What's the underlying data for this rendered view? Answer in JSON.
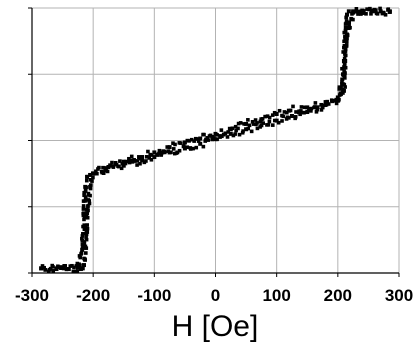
{
  "chart_data": {
    "type": "scatter",
    "title": "",
    "xlabel": "H [Oe]",
    "ylabel": "",
    "xlim": [
      -300,
      300
    ],
    "ylim": [
      0,
      4
    ],
    "xticks": [
      -300,
      -200,
      -100,
      0,
      100,
      200,
      300
    ],
    "xtick_labels": [
      "-300",
      "-200",
      "-100",
      "0",
      "100",
      "200",
      "300"
    ],
    "yticks": [
      0,
      1,
      2,
      3,
      4
    ],
    "grid": true,
    "legend": "none",
    "colors": {
      "marker": "#000000",
      "grid": "#b3b3b3",
      "axis": "#000000"
    },
    "series": [
      {
        "branch": "descending",
        "x": [
          285,
          270,
          255,
          240,
          225,
          215,
          212,
          210,
          208,
          205,
          200,
          180,
          150,
          120,
          100,
          75,
          50,
          25,
          0,
          -25,
          -50,
          -75,
          -100,
          -125,
          -150,
          -175,
          -200,
          -205,
          -210,
          -213,
          -215,
          -217,
          -220,
          -240,
          -260,
          -285
        ],
        "y": [
          3.95,
          3.95,
          3.96,
          3.95,
          3.93,
          3.6,
          3.2,
          2.75,
          2.72,
          2.7,
          2.65,
          2.58,
          2.5,
          2.45,
          2.4,
          2.32,
          2.25,
          2.17,
          2.1,
          2.03,
          1.97,
          1.9,
          1.82,
          1.75,
          1.68,
          1.6,
          1.5,
          1.3,
          0.9,
          0.4,
          0.12,
          0.07,
          0.06,
          0.06,
          0.07,
          0.07
        ]
      },
      {
        "branch": "ascending",
        "x": [
          -285,
          -260,
          -240,
          -225,
          -218,
          -215,
          -213,
          -210,
          -205,
          -200,
          -180,
          -150,
          -120,
          -100,
          -75,
          -50,
          -25,
          0,
          25,
          50,
          75,
          100,
          125,
          150,
          175,
          200,
          205,
          210,
          213,
          215,
          218,
          225,
          240,
          260,
          285
        ],
        "y": [
          0.07,
          0.06,
          0.06,
          0.08,
          0.35,
          0.9,
          1.3,
          1.45,
          1.48,
          1.5,
          1.55,
          1.62,
          1.7,
          1.75,
          1.82,
          1.88,
          1.95,
          2.02,
          2.1,
          2.17,
          2.23,
          2.3,
          2.37,
          2.43,
          2.5,
          2.6,
          2.8,
          3.2,
          3.7,
          3.9,
          3.95,
          3.95,
          3.96,
          3.95,
          3.94
        ]
      }
    ]
  }
}
